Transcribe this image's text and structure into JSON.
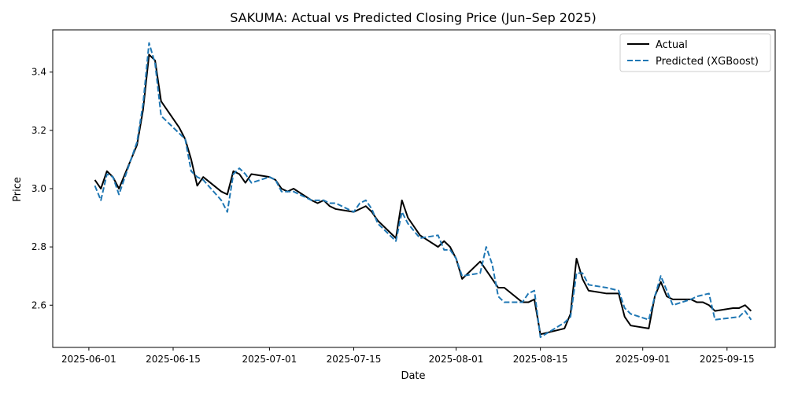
{
  "chart_data": {
    "type": "line",
    "title": "SAKUMA: Actual vs Predicted Closing Price (Jun–Sep 2025)",
    "xlabel": "Date",
    "ylabel": "Price",
    "x_range": [
      "2025-05-26",
      "2025-09-23"
    ],
    "ylim": [
      2.455,
      3.545
    ],
    "x_ticks": [
      "2025-06-01",
      "2025-06-15",
      "2025-07-01",
      "2025-07-15",
      "2025-08-01",
      "2025-08-15",
      "2025-09-01",
      "2025-09-15"
    ],
    "y_ticks": [
      2.6,
      2.8,
      3.0,
      3.2,
      3.4
    ],
    "y_tick_labels": [
      "2.6",
      "2.8",
      "3.0",
      "3.2",
      "3.4"
    ],
    "grid": false,
    "legend_position": "top-right",
    "series": [
      {
        "name": "Actual",
        "style": "solid",
        "color": "#000000",
        "points": [
          [
            "2025-06-02",
            3.03
          ],
          [
            "2025-06-03",
            3.0
          ],
          [
            "2025-06-04",
            3.06
          ],
          [
            "2025-06-05",
            3.04
          ],
          [
            "2025-06-06",
            3.0
          ],
          [
            "2025-06-09",
            3.15
          ],
          [
            "2025-06-10",
            3.27
          ],
          [
            "2025-06-11",
            3.46
          ],
          [
            "2025-06-12",
            3.44
          ],
          [
            "2025-06-13",
            3.3
          ],
          [
            "2025-06-16",
            3.21
          ],
          [
            "2025-06-17",
            3.17
          ],
          [
            "2025-06-18",
            3.1
          ],
          [
            "2025-06-19",
            3.01
          ],
          [
            "2025-06-20",
            3.04
          ],
          [
            "2025-06-23",
            2.99
          ],
          [
            "2025-06-24",
            2.98
          ],
          [
            "2025-06-25",
            3.06
          ],
          [
            "2025-06-26",
            3.05
          ],
          [
            "2025-06-27",
            3.02
          ],
          [
            "2025-06-28",
            3.05
          ],
          [
            "2025-07-01",
            3.04
          ],
          [
            "2025-07-02",
            3.03
          ],
          [
            "2025-07-03",
            3.0
          ],
          [
            "2025-07-04",
            2.99
          ],
          [
            "2025-07-05",
            3.0
          ],
          [
            "2025-07-08",
            2.96
          ],
          [
            "2025-07-09",
            2.95
          ],
          [
            "2025-07-10",
            2.96
          ],
          [
            "2025-07-11",
            2.94
          ],
          [
            "2025-07-12",
            2.93
          ],
          [
            "2025-07-15",
            2.92
          ],
          [
            "2025-07-17",
            2.94
          ],
          [
            "2025-07-18",
            2.92
          ],
          [
            "2025-07-19",
            2.89
          ],
          [
            "2025-07-22",
            2.83
          ],
          [
            "2025-07-23",
            2.96
          ],
          [
            "2025-07-24",
            2.9
          ],
          [
            "2025-07-26",
            2.84
          ],
          [
            "2025-07-29",
            2.8
          ],
          [
            "2025-07-30",
            2.82
          ],
          [
            "2025-07-31",
            2.8
          ],
          [
            "2025-08-01",
            2.76
          ],
          [
            "2025-08-02",
            2.69
          ],
          [
            "2025-08-05",
            2.75
          ],
          [
            "2025-08-08",
            2.66
          ],
          [
            "2025-08-09",
            2.66
          ],
          [
            "2025-08-12",
            2.61
          ],
          [
            "2025-08-13",
            2.61
          ],
          [
            "2025-08-14",
            2.62
          ],
          [
            "2025-08-15",
            2.5
          ],
          [
            "2025-08-19",
            2.52
          ],
          [
            "2025-08-20",
            2.57
          ],
          [
            "2025-08-21",
            2.76
          ],
          [
            "2025-08-22",
            2.69
          ],
          [
            "2025-08-23",
            2.65
          ],
          [
            "2025-08-26",
            2.64
          ],
          [
            "2025-08-28",
            2.64
          ],
          [
            "2025-08-29",
            2.56
          ],
          [
            "2025-08-30",
            2.53
          ],
          [
            "2025-09-02",
            2.52
          ],
          [
            "2025-09-03",
            2.63
          ],
          [
            "2025-09-04",
            2.68
          ],
          [
            "2025-09-05",
            2.63
          ],
          [
            "2025-09-06",
            2.62
          ],
          [
            "2025-09-09",
            2.62
          ],
          [
            "2025-09-10",
            2.61
          ],
          [
            "2025-09-11",
            2.61
          ],
          [
            "2025-09-12",
            2.6
          ],
          [
            "2025-09-13",
            2.58
          ],
          [
            "2025-09-16",
            2.59
          ],
          [
            "2025-09-17",
            2.59
          ],
          [
            "2025-09-18",
            2.6
          ],
          [
            "2025-09-19",
            2.58
          ]
        ]
      },
      {
        "name": "Predicted (XGBoost)",
        "style": "dashed",
        "color": "#1f77b4",
        "points": [
          [
            "2025-06-02",
            3.01
          ],
          [
            "2025-06-03",
            2.96
          ],
          [
            "2025-06-04",
            3.05
          ],
          [
            "2025-06-05",
            3.04
          ],
          [
            "2025-06-06",
            2.98
          ],
          [
            "2025-06-09",
            3.16
          ],
          [
            "2025-06-10",
            3.29
          ],
          [
            "2025-06-11",
            3.5
          ],
          [
            "2025-06-12",
            3.43
          ],
          [
            "2025-06-13",
            3.25
          ],
          [
            "2025-06-16",
            3.19
          ],
          [
            "2025-06-17",
            3.17
          ],
          [
            "2025-06-18",
            3.06
          ],
          [
            "2025-06-19",
            3.04
          ],
          [
            "2025-06-20",
            3.03
          ],
          [
            "2025-06-23",
            2.96
          ],
          [
            "2025-06-24",
            2.92
          ],
          [
            "2025-06-25",
            3.05
          ],
          [
            "2025-06-26",
            3.07
          ],
          [
            "2025-06-27",
            3.05
          ],
          [
            "2025-06-28",
            3.02
          ],
          [
            "2025-07-01",
            3.04
          ],
          [
            "2025-07-02",
            3.03
          ],
          [
            "2025-07-03",
            2.99
          ],
          [
            "2025-07-04",
            2.99
          ],
          [
            "2025-07-05",
            2.99
          ],
          [
            "2025-07-08",
            2.96
          ],
          [
            "2025-07-09",
            2.96
          ],
          [
            "2025-07-10",
            2.96
          ],
          [
            "2025-07-11",
            2.95
          ],
          [
            "2025-07-12",
            2.95
          ],
          [
            "2025-07-15",
            2.92
          ],
          [
            "2025-07-16",
            2.95
          ],
          [
            "2025-07-17",
            2.96
          ],
          [
            "2025-07-18",
            2.93
          ],
          [
            "2025-07-19",
            2.88
          ],
          [
            "2025-07-22",
            2.82
          ],
          [
            "2025-07-23",
            2.92
          ],
          [
            "2025-07-24",
            2.88
          ],
          [
            "2025-07-26",
            2.83
          ],
          [
            "2025-07-29",
            2.84
          ],
          [
            "2025-07-30",
            2.79
          ],
          [
            "2025-07-31",
            2.79
          ],
          [
            "2025-08-01",
            2.76
          ],
          [
            "2025-08-02",
            2.7
          ],
          [
            "2025-08-05",
            2.71
          ],
          [
            "2025-08-06",
            2.8
          ],
          [
            "2025-08-07",
            2.74
          ],
          [
            "2025-08-08",
            2.63
          ],
          [
            "2025-08-09",
            2.61
          ],
          [
            "2025-08-12",
            2.61
          ],
          [
            "2025-08-13",
            2.64
          ],
          [
            "2025-08-14",
            2.65
          ],
          [
            "2025-08-15",
            2.49
          ],
          [
            "2025-08-19",
            2.54
          ],
          [
            "2025-08-20",
            2.56
          ],
          [
            "2025-08-21",
            2.71
          ],
          [
            "2025-08-22",
            2.71
          ],
          [
            "2025-08-23",
            2.67
          ],
          [
            "2025-08-26",
            2.66
          ],
          [
            "2025-08-28",
            2.65
          ],
          [
            "2025-08-29",
            2.59
          ],
          [
            "2025-08-30",
            2.57
          ],
          [
            "2025-09-02",
            2.55
          ],
          [
            "2025-09-03",
            2.63
          ],
          [
            "2025-09-04",
            2.7
          ],
          [
            "2025-09-05",
            2.65
          ],
          [
            "2025-09-06",
            2.6
          ],
          [
            "2025-09-09",
            2.62
          ],
          [
            "2025-09-10",
            2.63
          ],
          [
            "2025-09-12",
            2.64
          ],
          [
            "2025-09-13",
            2.55
          ],
          [
            "2025-09-17",
            2.56
          ],
          [
            "2025-09-18",
            2.58
          ],
          [
            "2025-09-19",
            2.55
          ]
        ]
      }
    ]
  }
}
